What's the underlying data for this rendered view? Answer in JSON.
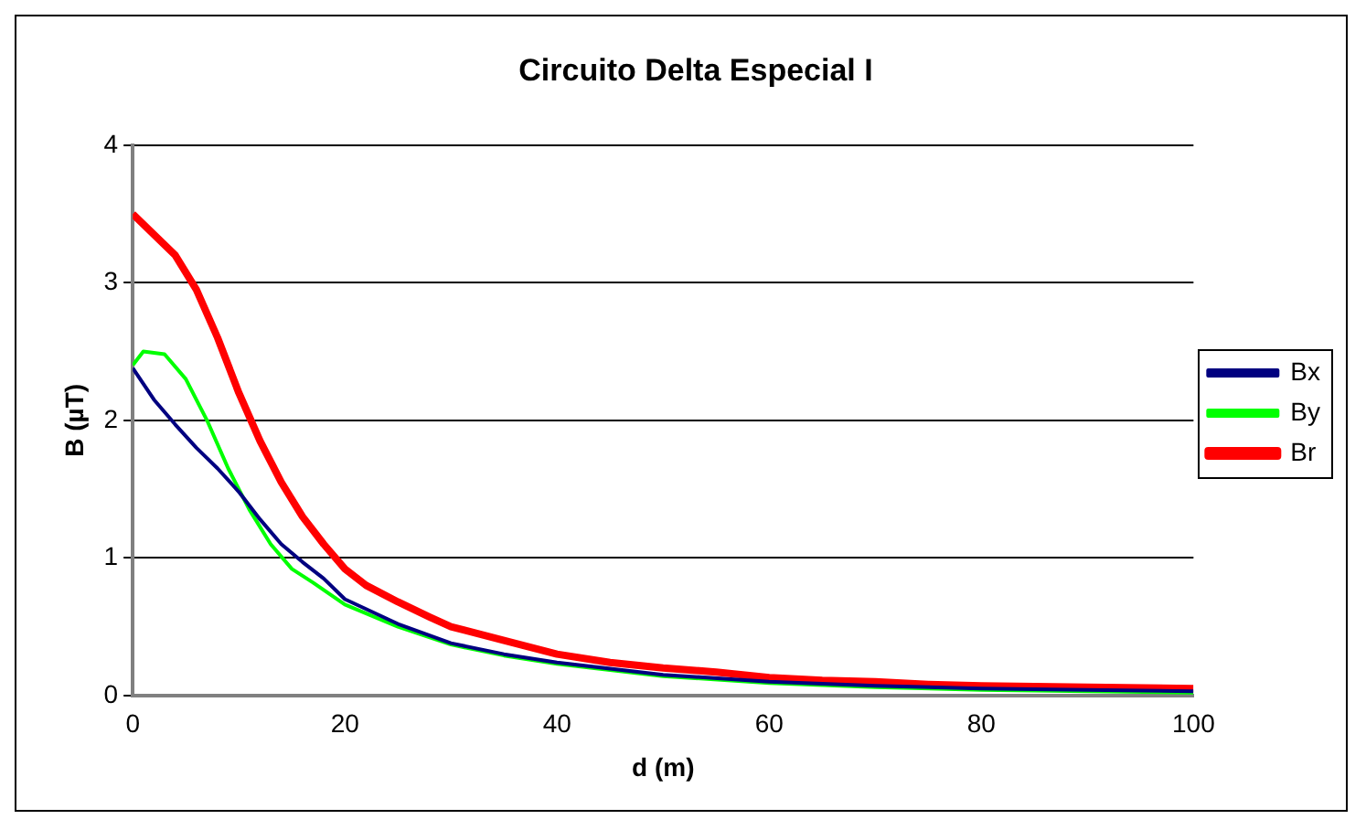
{
  "chart_data": {
    "type": "line",
    "title": "Circuito Delta Especial I",
    "xlabel": "d (m)",
    "ylabel": "B (µT)",
    "xlim": [
      0,
      100
    ],
    "xticks": [
      0,
      20,
      40,
      60,
      80,
      100
    ],
    "ylim": [
      0,
      4
    ],
    "yticks": [
      0,
      1,
      2,
      3,
      4
    ],
    "grid": "y",
    "legend": "right",
    "marker": "none",
    "line_style": "solid",
    "series": [
      {
        "name": "Bx",
        "color": "#000080",
        "x": [
          0,
          2,
          4,
          6,
          8,
          10,
          12,
          14,
          16,
          18,
          20,
          25,
          30,
          35,
          40,
          50,
          60,
          70,
          80,
          90,
          100
        ],
        "values": [
          2.38,
          2.15,
          1.97,
          1.8,
          1.65,
          1.48,
          1.28,
          1.1,
          0.97,
          0.85,
          0.7,
          0.52,
          0.38,
          0.3,
          0.24,
          0.15,
          0.1,
          0.07,
          0.05,
          0.04,
          0.03
        ]
      },
      {
        "name": "By",
        "color": "#00ff00",
        "x": [
          0,
          1,
          3,
          5,
          7,
          9,
          11,
          13,
          15,
          17,
          20,
          25,
          30,
          35,
          40,
          50,
          60,
          70,
          80,
          90,
          100
        ],
        "values": [
          2.4,
          2.5,
          2.48,
          2.3,
          2.0,
          1.65,
          1.35,
          1.1,
          0.92,
          0.82,
          0.66,
          0.5,
          0.37,
          0.29,
          0.23,
          0.14,
          0.09,
          0.06,
          0.04,
          0.03,
          0.02
        ]
      },
      {
        "name": "Br",
        "color": "#ff0000",
        "x": [
          0,
          2,
          4,
          6,
          8,
          10,
          12,
          14,
          16,
          18,
          20,
          22,
          25,
          28,
          30,
          35,
          40,
          45,
          50,
          55,
          60,
          65,
          70,
          75,
          80,
          90,
          100
        ],
        "values": [
          3.5,
          3.35,
          3.2,
          2.95,
          2.6,
          2.2,
          1.85,
          1.55,
          1.3,
          1.1,
          0.92,
          0.8,
          0.68,
          0.57,
          0.5,
          0.4,
          0.3,
          0.24,
          0.2,
          0.17,
          0.13,
          0.11,
          0.1,
          0.08,
          0.07,
          0.06,
          0.05
        ]
      }
    ]
  }
}
